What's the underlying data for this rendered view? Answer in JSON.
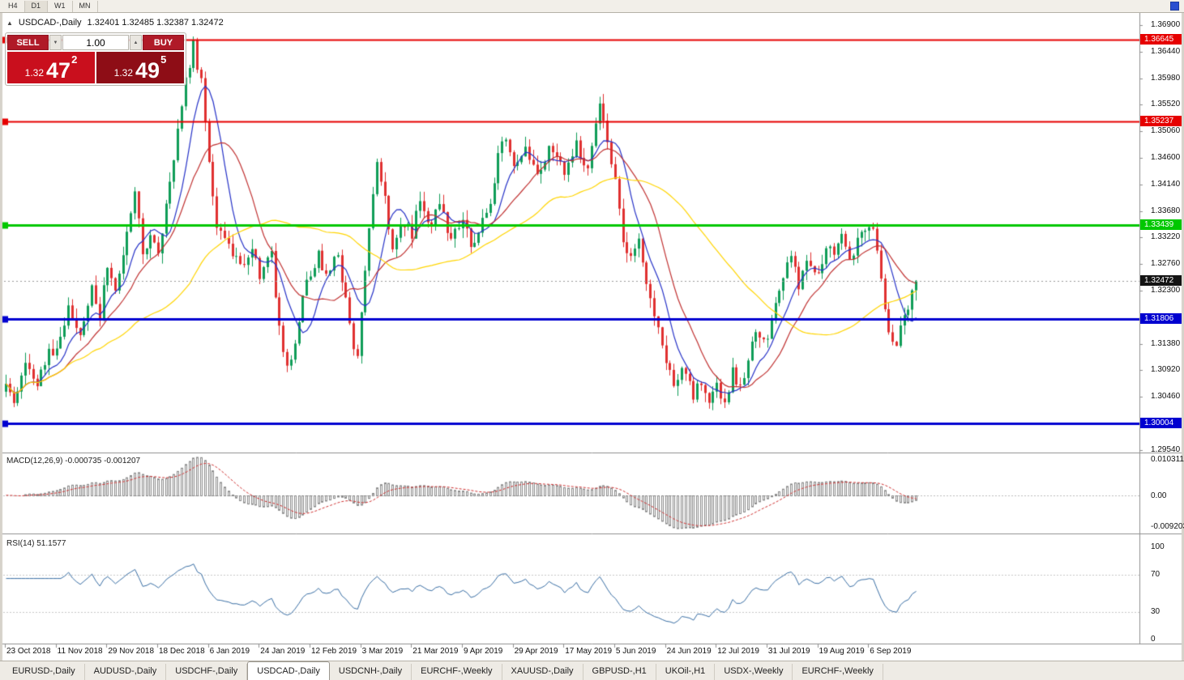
{
  "toolbar": {
    "timeframes": [
      "H4",
      "D1",
      "W1",
      "MN"
    ],
    "active": "D1"
  },
  "chart": {
    "title": {
      "collapse_icon": "▲",
      "symbol": "USDCAD-,Daily",
      "ohlc": "1.32401 1.32485 1.32387 1.32472"
    },
    "trade_panel": {
      "sell_label": "SELL",
      "buy_label": "BUY",
      "volume": "1.00",
      "spin_down_icon": "▼",
      "spin_up_icon": "▲",
      "bid": {
        "small": "1.32",
        "big": "47",
        "sup": "2"
      },
      "ask": {
        "small": "1.32",
        "big": "49",
        "sup": "5"
      },
      "sell_color": "#b01a28",
      "buy_color": "#b01a28",
      "bid_box_color": "#c90f1d",
      "ask_box_color": "#8e0d16"
    }
  },
  "chart_data": {
    "type": "candlestick",
    "title": "USDCAD-,Daily",
    "ohlc_display": {
      "open": "1.32401",
      "high": "1.32485",
      "low": "1.32387",
      "close": "1.32472"
    },
    "x_tick_labels": [
      "23 Oct 2018",
      "11 Nov 2018",
      "29 Nov 2018",
      "18 Dec 2018",
      "6 Jan 2019",
      "24 Jan 2019",
      "12 Feb 2019",
      "3 Mar 2019",
      "21 Mar 2019",
      "9 Apr 2019",
      "29 Apr 2019",
      "17 May 2019",
      "5 Jun 2019",
      "24 Jun 2019",
      "12 Jul 2019",
      "31 Jul 2019",
      "19 Aug 2019",
      "6 Sep 2019"
    ],
    "candles_per_tick": 13,
    "num_candles": 234,
    "y_axis_ticks": [
      "1.36900",
      "1.36440",
      "1.35980",
      "1.35520",
      "1.35060",
      "1.34600",
      "1.34140",
      "1.33680",
      "1.33220",
      "1.32760",
      "1.32300",
      "1.31840",
      "1.31380",
      "1.30920",
      "1.30460",
      "1.30000",
      "1.29540"
    ],
    "y_range": {
      "top": 1.3711,
      "bottom": 1.2951
    },
    "price_path_anchors": [
      [
        0,
        1.3075
      ],
      [
        2,
        1.304
      ],
      [
        5,
        1.311
      ],
      [
        8,
        1.306
      ],
      [
        11,
        1.313
      ],
      [
        13,
        1.3125
      ],
      [
        16,
        1.32
      ],
      [
        19,
        1.315
      ],
      [
        22,
        1.324
      ],
      [
        24,
        1.319
      ],
      [
        26,
        1.327
      ],
      [
        28,
        1.323
      ],
      [
        31,
        1.333
      ],
      [
        33,
        1.341
      ],
      [
        35,
        1.329
      ],
      [
        37,
        1.332
      ],
      [
        39,
        1.329
      ],
      [
        42,
        1.342
      ],
      [
        45,
        1.356
      ],
      [
        48,
        1.3655
      ],
      [
        50,
        1.359
      ],
      [
        52,
        1.345
      ],
      [
        54,
        1.333
      ],
      [
        56,
        1.333
      ],
      [
        60,
        1.327
      ],
      [
        63,
        1.331
      ],
      [
        65,
        1.326
      ],
      [
        68,
        1.329
      ],
      [
        70,
        1.316
      ],
      [
        72,
        1.3105
      ],
      [
        74,
        1.313
      ],
      [
        76,
        1.322
      ],
      [
        78,
        1.326
      ],
      [
        80,
        1.33
      ],
      [
        82,
        1.325
      ],
      [
        85,
        1.33
      ],
      [
        87,
        1.321
      ],
      [
        89,
        1.313
      ],
      [
        90,
        1.311
      ],
      [
        91,
        1.32
      ],
      [
        93,
        1.334
      ],
      [
        95,
        1.345
      ],
      [
        97,
        1.339
      ],
      [
        99,
        1.33
      ],
      [
        101,
        1.335
      ],
      [
        104,
        1.333
      ],
      [
        106,
        1.339
      ],
      [
        108,
        1.334
      ],
      [
        111,
        1.338
      ],
      [
        114,
        1.332
      ],
      [
        117,
        1.335
      ],
      [
        119,
        1.331
      ],
      [
        121,
        1.333
      ],
      [
        124,
        1.339
      ],
      [
        126,
        1.346
      ],
      [
        128,
        1.35
      ],
      [
        130,
        1.345
      ],
      [
        133,
        1.348
      ],
      [
        136,
        1.343
      ],
      [
        139,
        1.347
      ],
      [
        143,
        1.344
      ],
      [
        146,
        1.348
      ],
      [
        149,
        1.344
      ],
      [
        152,
        1.355
      ],
      [
        154,
        1.348
      ],
      [
        156,
        1.342
      ],
      [
        158,
        1.331
      ],
      [
        160,
        1.328
      ],
      [
        162,
        1.332
      ],
      [
        164,
        1.324
      ],
      [
        167,
        1.316
      ],
      [
        169,
        1.311
      ],
      [
        171,
        1.307
      ],
      [
        173,
        1.309
      ],
      [
        176,
        1.305
      ],
      [
        178,
        1.3075
      ],
      [
        180,
        1.3035
      ],
      [
        182,
        1.306
      ],
      [
        184,
        1.303
      ],
      [
        186,
        1.309
      ],
      [
        188,
        1.306
      ],
      [
        190,
        1.311
      ],
      [
        192,
        1.316
      ],
      [
        195,
        1.314
      ],
      [
        197,
        1.321
      ],
      [
        199,
        1.325
      ],
      [
        201,
        1.329
      ],
      [
        203,
        1.324
      ],
      [
        205,
        1.329
      ],
      [
        208,
        1.326
      ],
      [
        210,
        1.331
      ],
      [
        212,
        1.329
      ],
      [
        214,
        1.333
      ],
      [
        216,
        1.328
      ],
      [
        218,
        1.332
      ],
      [
        220,
        1.333
      ],
      [
        222,
        1.334
      ],
      [
        224,
        1.324
      ],
      [
        226,
        1.316
      ],
      [
        228,
        1.314
      ],
      [
        230,
        1.318
      ],
      [
        232,
        1.323
      ],
      [
        233,
        1.32472
      ]
    ],
    "horizontal_lines": [
      {
        "id": "resistance-upper",
        "price": 1.36645,
        "label": "1.36645",
        "color": "#e60000",
        "thickness": 2
      },
      {
        "id": "resistance-lower",
        "price": 1.35237,
        "label": "1.35237",
        "color": "#e60000",
        "thickness": 2
      },
      {
        "id": "midline-green",
        "price": 1.33439,
        "label": "1.33439",
        "color": "#00c800",
        "thickness": 3
      },
      {
        "id": "support-upper",
        "price": 1.31806,
        "label": "1.31806",
        "color": "#0000d0",
        "thickness": 3
      },
      {
        "id": "support-lower",
        "price": 1.30004,
        "label": "1.30004",
        "color": "#0000d0",
        "thickness": 3
      }
    ],
    "current_price": {
      "value": 1.32472,
      "label": "1.32472",
      "tag_color": "#141414",
      "line_color": "#9a9a9a"
    },
    "moving_averages": [
      {
        "period": 8,
        "color": "#2733c8"
      },
      {
        "period": 16,
        "color": "#c13232"
      },
      {
        "period": 48,
        "color": "#ffd500"
      }
    ],
    "candle_colors": {
      "up": "#0f9d58",
      "down": "#e03030"
    },
    "indicators": {
      "macd": {
        "label": "MACD(12,26,9) -0.000735 -0.001207",
        "main_value": "-0.000735",
        "signal_value": "-0.001207",
        "axis": {
          "max": "0.010311",
          "zero": "0.00",
          "min": "-0.009203"
        },
        "histogram_color": "#8a8a8a",
        "signal_color": "#d03030"
      },
      "rsi": {
        "label": "RSI(14) 51.1577",
        "value": "51.1577",
        "levels": [
          100,
          70,
          30,
          0
        ],
        "dashed_levels": [
          70,
          30
        ],
        "line_color": "#3a6fa5"
      }
    }
  },
  "tabs": {
    "active_index": 3,
    "items": [
      "EURUSD-,Daily",
      "AUDUSD-,Daily",
      "USDCHF-,Daily",
      "USDCAD-,Daily",
      "USDCNH-,Daily",
      "EURCHF-,Weekly",
      "XAUUSD-,Daily",
      "GBPUSD-,H1",
      "UKOil-,H1",
      "USDX-,Weekly",
      "EURCHF-,Weekly"
    ]
  }
}
